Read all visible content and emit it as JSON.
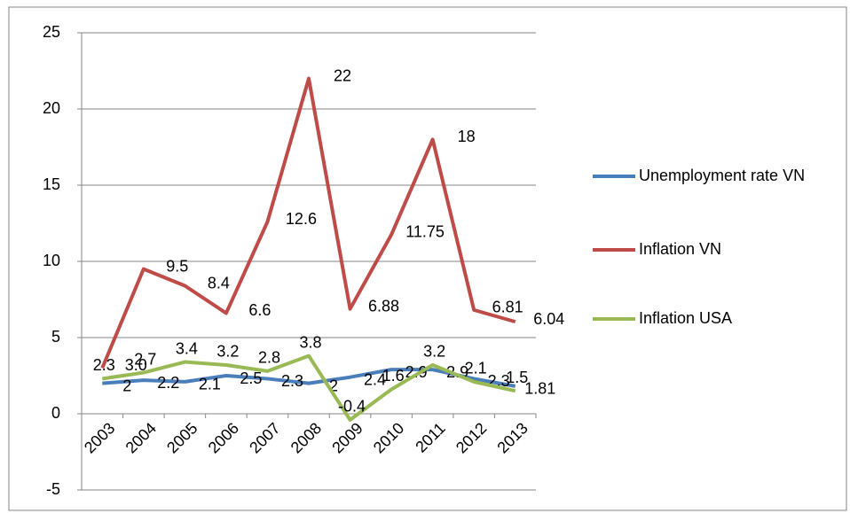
{
  "chart_data": {
    "type": "line",
    "categories": [
      "2003",
      "2004",
      "2005",
      "2006",
      "2007",
      "2008",
      "2009",
      "2010",
      "2011",
      "2012",
      "2013"
    ],
    "series": [
      {
        "name": "Unemployment rate VN",
        "color": "#4a7ebb",
        "values": [
          2,
          2.2,
          2.1,
          2.5,
          2.3,
          2,
          2.4,
          2.9,
          2.9,
          2.3,
          1.81
        ]
      },
      {
        "name": "Inflation VN",
        "color": "#be4b48",
        "values": [
          3,
          9.5,
          8.4,
          6.6,
          12.6,
          22,
          6.88,
          11.75,
          18,
          6.81,
          6.04
        ],
        "value_labels": [
          "3.0",
          "9.5",
          "8.4",
          "6.6",
          "12.6",
          "22",
          "6.88",
          "11.75",
          "18",
          "6.81",
          "6.04"
        ]
      },
      {
        "name": "Inflation USA",
        "color": "#98b954",
        "values": [
          2.3,
          2.7,
          3.4,
          3.2,
          2.8,
          3.8,
          -0.4,
          1.6,
          3.2,
          2.1,
          1.5
        ]
      }
    ],
    "ylim": [
      -5,
      25
    ],
    "yticks": [
      -5,
      0,
      5,
      10,
      15,
      20,
      25
    ],
    "grid": true,
    "legend": "right"
  }
}
